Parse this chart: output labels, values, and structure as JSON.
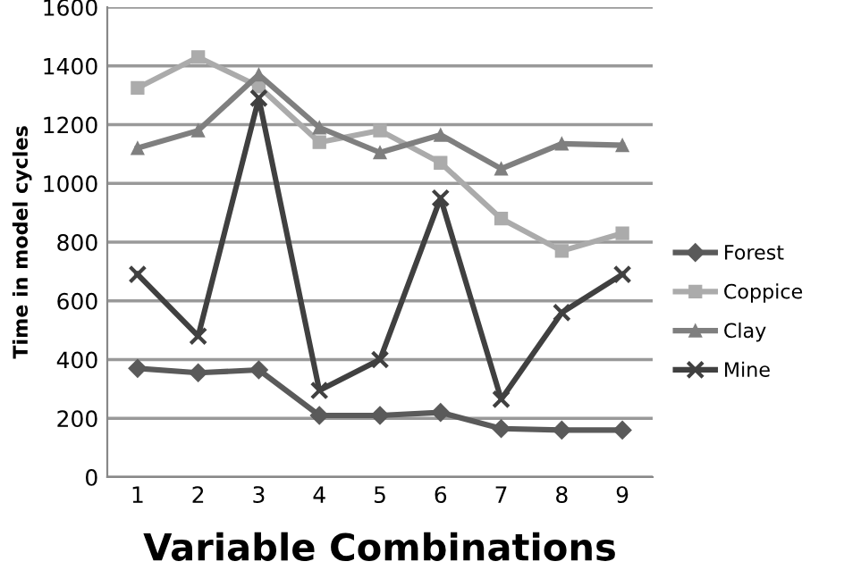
{
  "chart_data": {
    "type": "line",
    "xlabel": "Variable Combinations",
    "ylabel": "Time in model cycles",
    "categories": [
      "1",
      "2",
      "3",
      "4",
      "5",
      "6",
      "7",
      "8",
      "9"
    ],
    "series": [
      {
        "name": "Forest",
        "color": "#5a5a5a",
        "marker": "diamond",
        "values": [
          370,
          355,
          365,
          210,
          210,
          220,
          165,
          160,
          160
        ]
      },
      {
        "name": "Coppice",
        "color": "#ababab",
        "marker": "square",
        "values": [
          1325,
          1430,
          1330,
          1140,
          1180,
          1070,
          880,
          770,
          830
        ]
      },
      {
        "name": "Clay",
        "color": "#7f7f7f",
        "marker": "triangle",
        "values": [
          1120,
          1180,
          1370,
          1190,
          1105,
          1165,
          1050,
          1135,
          1130
        ]
      },
      {
        "name": "Mine",
        "color": "#404040",
        "marker": "cross",
        "values": [
          690,
          480,
          1290,
          295,
          400,
          950,
          265,
          560,
          690
        ]
      }
    ],
    "ylim": [
      0,
      1600
    ],
    "yticks": [
      0,
      200,
      400,
      600,
      800,
      1000,
      1200,
      1400,
      1600
    ],
    "grid": "y",
    "legend": "right"
  }
}
